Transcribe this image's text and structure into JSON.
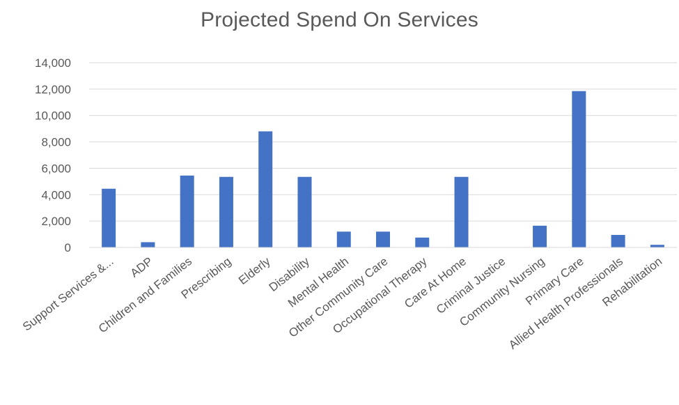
{
  "chart_data": {
    "type": "bar",
    "title": "Projected Spend On Services",
    "xlabel": "",
    "ylabel": "",
    "categories": [
      "Support Services &...",
      "ADP",
      "Children and Families",
      "Prescribing",
      "Elderly",
      "Disability",
      "Mental Health",
      "Other Community Care",
      "Occupational Therapy",
      "Care At Home",
      "Criminal Justice",
      "Community Nursing",
      "Primary Care",
      "Allied Health Professionals",
      "Rehabilitation"
    ],
    "values": [
      4450,
      400,
      5450,
      5350,
      8800,
      5350,
      1200,
      1200,
      750,
      5350,
      0,
      1650,
      11850,
      950,
      200
    ],
    "ylim": [
      0,
      14000
    ],
    "yticks": [
      0,
      2000,
      4000,
      6000,
      8000,
      10000,
      12000,
      14000
    ],
    "ytick_labels": [
      "0",
      "2,000",
      "4,000",
      "6,000",
      "8,000",
      "10,000",
      "12,000",
      "14,000"
    ],
    "grid": true,
    "legend": "none",
    "colors": {
      "bar": "#4472C4",
      "grid": "#D9D9D9",
      "axis": "#D9D9D9",
      "text": "#595959",
      "title": "#595959"
    }
  }
}
